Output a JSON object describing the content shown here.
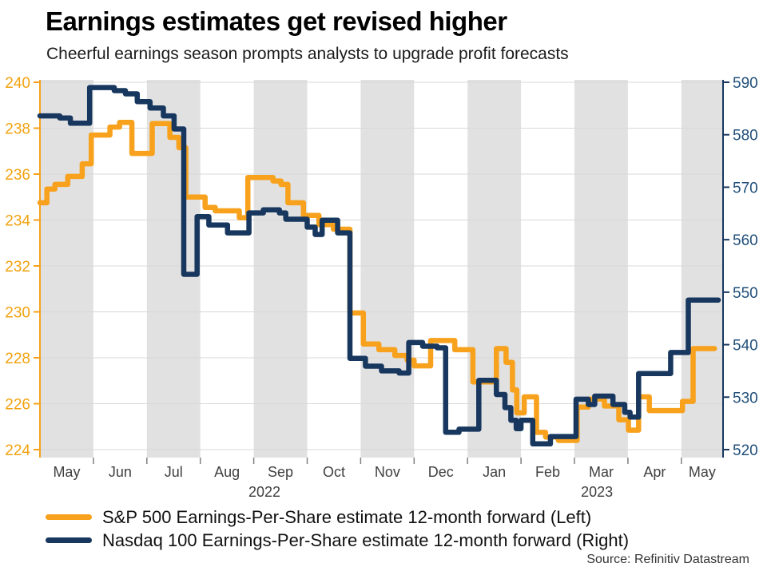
{
  "header": {
    "title": "Earnings estimates get revised higher",
    "subtitle": "Cheerful earnings season prompts analysts to upgrade profit forecasts"
  },
  "source": "Source: Refinitiv Datastream",
  "legend": {
    "items": [
      {
        "label": "S&P 500 Earnings-Per-Share estimate 12-month forward (Left)",
        "color": "#F7A11C"
      },
      {
        "label": "Nasdaq 100 Earnings-Per-Share estimate 12-month forward (Right)",
        "color": "#17375E"
      }
    ]
  },
  "colors": {
    "sp500_line": "#F7A11C",
    "nasdaq_line": "#17375E",
    "left_axis_labels": "#F2A20F",
    "right_axis_labels": "#1F4E79",
    "month_labels": "#404040",
    "band": "#E1E1E1",
    "grid": "#D8D8D8",
    "month_tick": "#808080"
  },
  "chart_data": {
    "type": "line",
    "step_lines": true,
    "title": "Earnings estimates get revised higher",
    "subtitle": "Cheerful earnings season prompts analysts to upgrade profit forecasts",
    "grid": true,
    "legend_position": "bottom-left",
    "x_axis": {
      "unit": "months",
      "months": [
        "May",
        "Jun",
        "Jul",
        "Aug",
        "Sep",
        "Oct",
        "Nov",
        "Dec",
        "Jan",
        "Feb",
        "Mar",
        "Apr",
        "May"
      ],
      "visible_months": 12.78,
      "year_labels": [
        {
          "text": "2022",
          "month_center": 4.2
        },
        {
          "text": "2023",
          "month_center": 10.42
        }
      ]
    },
    "left_axis": {
      "min": 224,
      "max": 240,
      "step": 2,
      "ticks": [
        224,
        226,
        228,
        230,
        232,
        234,
        236,
        238,
        240
      ]
    },
    "right_axis": {
      "min": 520,
      "max": 590,
      "step": 10,
      "ticks": [
        520,
        530,
        540,
        550,
        560,
        570,
        580,
        590
      ]
    },
    "series": [
      {
        "name": "S&P 500 Earnings-Per-Share estimate 12-month forward",
        "axis": "left",
        "color": "#F7A11C",
        "end_month": 12.62,
        "points": [
          [
            0.0,
            234.75
          ],
          [
            0.13,
            235.35
          ],
          [
            0.28,
            235.55
          ],
          [
            0.52,
            235.9
          ],
          [
            0.79,
            236.45
          ],
          [
            0.96,
            237.7
          ],
          [
            1.31,
            238.05
          ],
          [
            1.49,
            238.25
          ],
          [
            1.72,
            236.9
          ],
          [
            2.1,
            238.2
          ],
          [
            2.43,
            237.6
          ],
          [
            2.6,
            237.15
          ],
          [
            2.73,
            235.0
          ],
          [
            3.09,
            234.55
          ],
          [
            3.28,
            234.4
          ],
          [
            3.73,
            234.1
          ],
          [
            3.89,
            235.85
          ],
          [
            4.36,
            235.7
          ],
          [
            4.51,
            235.55
          ],
          [
            4.64,
            234.75
          ],
          [
            4.93,
            234.2
          ],
          [
            5.22,
            233.8
          ],
          [
            5.49,
            233.6
          ],
          [
            5.8,
            229.95
          ],
          [
            6.05,
            228.6
          ],
          [
            6.34,
            228.35
          ],
          [
            6.64,
            228.1
          ],
          [
            6.87,
            227.9
          ],
          [
            7.0,
            227.65
          ],
          [
            7.31,
            228.75
          ],
          [
            7.76,
            228.35
          ],
          [
            8.1,
            226.95
          ],
          [
            8.54,
            228.4
          ],
          [
            8.72,
            227.8
          ],
          [
            8.84,
            226.6
          ],
          [
            8.92,
            225.6
          ],
          [
            9.06,
            226.3
          ],
          [
            9.29,
            224.75
          ],
          [
            9.46,
            224.55
          ],
          [
            9.7,
            224.4
          ],
          [
            10.05,
            225.85
          ],
          [
            10.26,
            226.2
          ],
          [
            10.56,
            225.9
          ],
          [
            10.83,
            225.3
          ],
          [
            11.01,
            224.85
          ],
          [
            11.2,
            226.3
          ],
          [
            11.4,
            225.7
          ],
          [
            12.02,
            226.1
          ],
          [
            12.22,
            228.4
          ]
        ]
      },
      {
        "name": "Nasdaq 100 Earnings-Per-Share estimate 12-month forward",
        "axis": "right",
        "color": "#17375E",
        "end_month": 12.69,
        "points": [
          [
            0.0,
            583.6
          ],
          [
            0.37,
            583.2
          ],
          [
            0.57,
            582.2
          ],
          [
            0.93,
            589.0
          ],
          [
            1.39,
            588.4
          ],
          [
            1.6,
            587.8
          ],
          [
            1.82,
            586.3
          ],
          [
            2.06,
            585.1
          ],
          [
            2.31,
            583.6
          ],
          [
            2.51,
            581.1
          ],
          [
            2.69,
            553.4
          ],
          [
            2.94,
            564.4
          ],
          [
            3.16,
            562.8
          ],
          [
            3.51,
            561.3
          ],
          [
            3.91,
            565.1
          ],
          [
            4.18,
            565.7
          ],
          [
            4.48,
            565.1
          ],
          [
            4.6,
            563.9
          ],
          [
            5.0,
            562.4
          ],
          [
            5.15,
            561.0
          ],
          [
            5.28,
            563.7
          ],
          [
            5.57,
            561.3
          ],
          [
            5.8,
            537.4
          ],
          [
            6.09,
            535.9
          ],
          [
            6.39,
            535.0
          ],
          [
            6.72,
            534.6
          ],
          [
            6.9,
            540.4
          ],
          [
            7.16,
            539.7
          ],
          [
            7.43,
            539.4
          ],
          [
            7.59,
            523.3
          ],
          [
            7.84,
            523.9
          ],
          [
            8.21,
            533.2
          ],
          [
            8.54,
            530.5
          ],
          [
            8.7,
            528.0
          ],
          [
            8.81,
            525.6
          ],
          [
            8.91,
            524.0
          ],
          [
            9.0,
            525.6
          ],
          [
            9.22,
            521.1
          ],
          [
            9.55,
            522.5
          ],
          [
            10.03,
            529.6
          ],
          [
            10.26,
            528.6
          ],
          [
            10.38,
            530.2
          ],
          [
            10.72,
            528.6
          ],
          [
            10.94,
            527.1
          ],
          [
            11.04,
            526.2
          ],
          [
            11.2,
            534.5
          ],
          [
            11.8,
            538.5
          ],
          [
            12.13,
            548.5
          ]
        ]
      }
    ]
  }
}
